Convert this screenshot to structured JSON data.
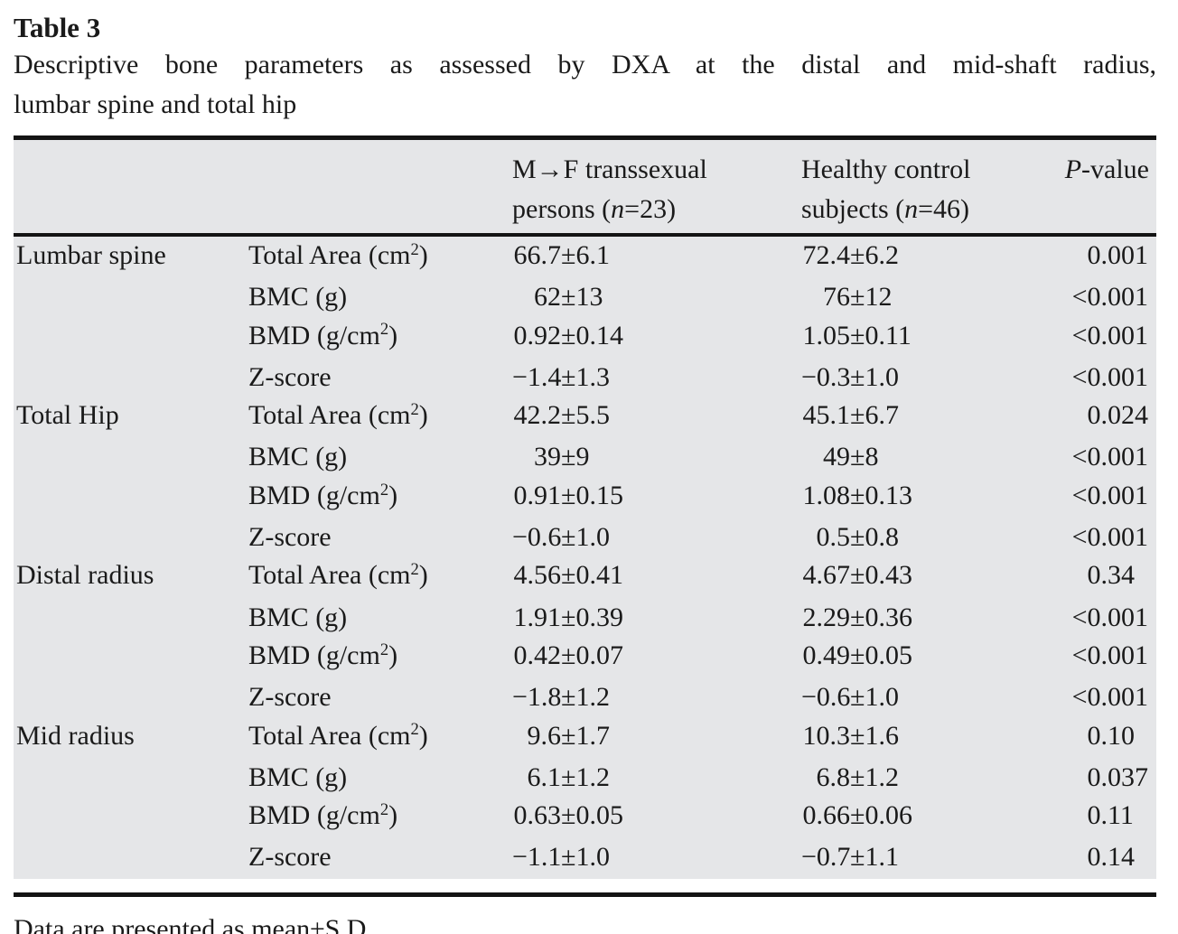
{
  "page": {
    "table_label": "Table 3",
    "caption_line1": "Descriptive bone parameters as assessed by DXA at the distal and mid-shaft radius,",
    "caption_line2": "lumbar spine and total hip",
    "footnote": "Data are presented as mean±S.D."
  },
  "colors": {
    "table_background": "#e5e6e8",
    "text": "#1a1a1a",
    "rule": "#141414"
  },
  "table": {
    "headers": {
      "group1": {
        "line1": "M→F transsexual",
        "line2_prefix": "persons (",
        "n_symbol": "n",
        "line2_suffix": "=23)"
      },
      "group2": {
        "line1": "Healthy control",
        "line2_prefix": "subjects (",
        "n_symbol": "n",
        "line2_suffix": "=46)"
      },
      "pvalue": {
        "italic": "P",
        "rest": "-value"
      }
    },
    "sections": [
      {
        "region": "Lumbar spine",
        "rows": [
          {
            "param": {
              "pre": "Total Area (cm",
              "sup": "2",
              "post": ")"
            },
            "g1": "66.7±6.1",
            "g2": "72.4±6.2",
            "p": "0.001"
          },
          {
            "param": {
              "pre": "BMC (g)",
              "sup": "",
              "post": ""
            },
            "g1": "62±13",
            "g2": "76±12",
            "p": "<0.001"
          },
          {
            "param": {
              "pre": "BMD (g/cm",
              "sup": "2",
              "post": ")"
            },
            "g1": "0.92±0.14",
            "g2": "1.05±0.11",
            "p": "<0.001"
          },
          {
            "param": {
              "pre": "Z-score",
              "sup": "",
              "post": ""
            },
            "g1": "−1.4±1.3",
            "g2": "−0.3±1.0",
            "p": "<0.001"
          }
        ]
      },
      {
        "region": "Total Hip",
        "rows": [
          {
            "param": {
              "pre": "Total Area (cm",
              "sup": "2",
              "post": ")"
            },
            "g1": "42.2±5.5",
            "g2": "45.1±6.7",
            "p": "0.024"
          },
          {
            "param": {
              "pre": "BMC (g)",
              "sup": "",
              "post": ""
            },
            "g1": "39±9",
            "g2": "49±8",
            "p": "<0.001"
          },
          {
            "param": {
              "pre": "BMD (g/cm",
              "sup": "2",
              "post": ")"
            },
            "g1": "0.91±0.15",
            "g2": "1.08±0.13",
            "p": "<0.001"
          },
          {
            "param": {
              "pre": "Z-score",
              "sup": "",
              "post": ""
            },
            "g1": "−0.6±1.0",
            "g2": "0.5±0.8",
            "p": "<0.001"
          }
        ]
      },
      {
        "region": "Distal radius",
        "rows": [
          {
            "param": {
              "pre": "Total Area (cm",
              "sup": "2",
              "post": ")"
            },
            "g1": "4.56±0.41",
            "g2": "4.67±0.43",
            "p": "0.34"
          },
          {
            "param": {
              "pre": "BMC (g)",
              "sup": "",
              "post": ""
            },
            "g1": "1.91±0.39",
            "g2": "2.29±0.36",
            "p": "<0.001"
          },
          {
            "param": {
              "pre": "BMD (g/cm",
              "sup": "2",
              "post": ")"
            },
            "g1": "0.42±0.07",
            "g2": "0.49±0.05",
            "p": "<0.001"
          },
          {
            "param": {
              "pre": "Z-score",
              "sup": "",
              "post": ""
            },
            "g1": "−1.8±1.2",
            "g2": "−0.6±1.0",
            "p": "<0.001"
          }
        ]
      },
      {
        "region": "Mid radius",
        "rows": [
          {
            "param": {
              "pre": "Total Area (cm",
              "sup": "2",
              "post": ")"
            },
            "g1": "9.6±1.7",
            "g2": "10.3±1.6",
            "p": "0.10"
          },
          {
            "param": {
              "pre": "BMC (g)",
              "sup": "",
              "post": ""
            },
            "g1": "6.1±1.2",
            "g2": "6.8±1.2",
            "p": "0.037"
          },
          {
            "param": {
              "pre": "BMD (g/cm",
              "sup": "2",
              "post": ")"
            },
            "g1": "0.63±0.05",
            "g2": "0.66±0.06",
            "p": "0.11"
          },
          {
            "param": {
              "pre": "Z-score",
              "sup": "",
              "post": ""
            },
            "g1": "−1.1±1.0",
            "g2": "−0.7±1.1",
            "p": "0.14"
          }
        ]
      }
    ]
  }
}
